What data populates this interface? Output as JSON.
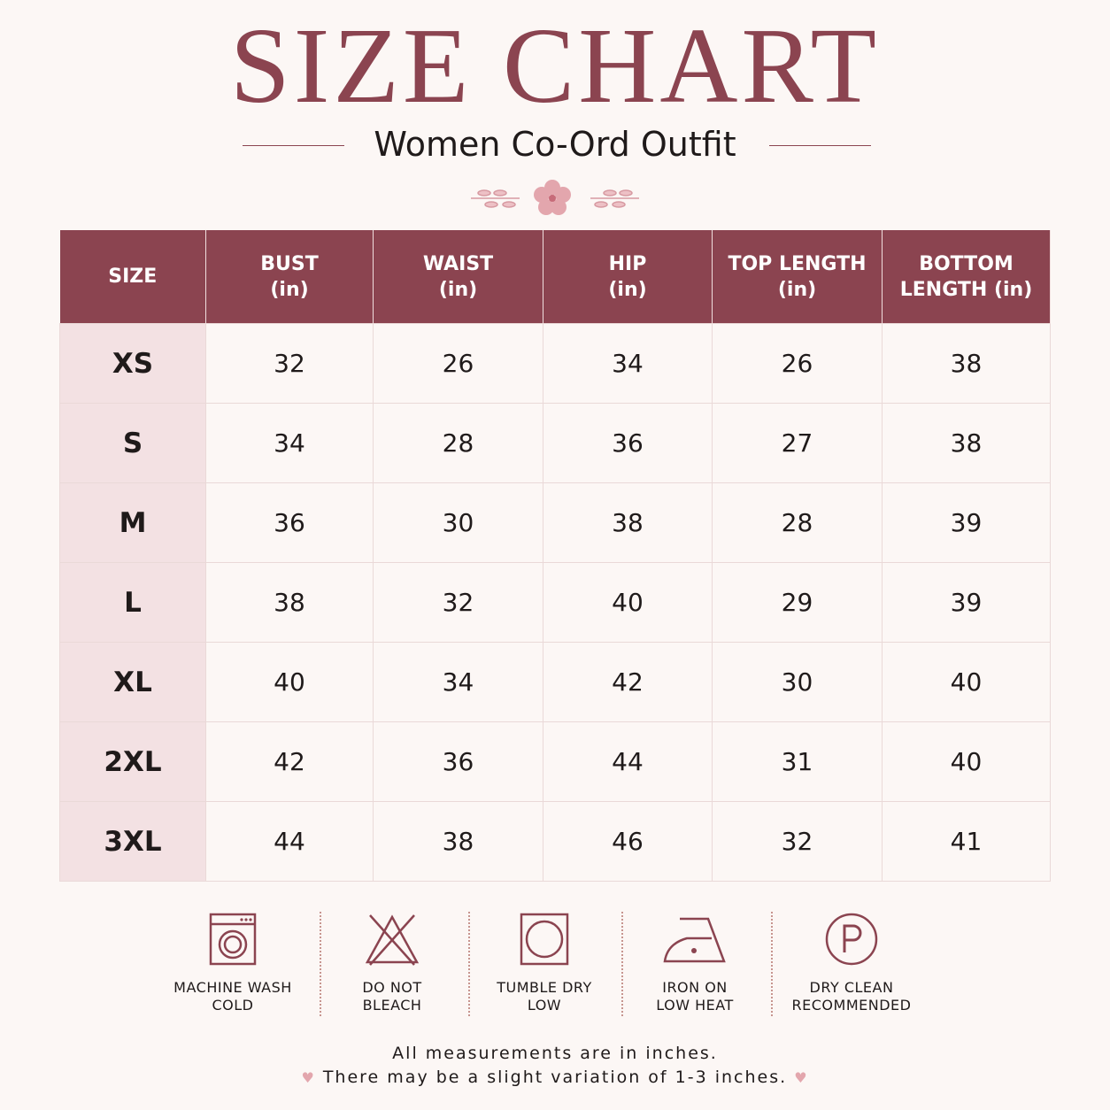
{
  "header": {
    "title": "SIZE CHART",
    "subtitle": "Women Co-Ord Outfit"
  },
  "table": {
    "columns": [
      "SIZE",
      "BUST\n(in)",
      "WAIST\n(in)",
      "HIP\n(in)",
      "TOP LENGTH\n(in)",
      "BOTTOM\nLENGTH (in)"
    ],
    "rows": [
      [
        "XS",
        32,
        26,
        34,
        26,
        38
      ],
      [
        "S",
        34,
        28,
        36,
        27,
        38
      ],
      [
        "M",
        36,
        30,
        38,
        28,
        39
      ],
      [
        "L",
        38,
        32,
        40,
        29,
        39
      ],
      [
        "XL",
        40,
        34,
        42,
        30,
        40
      ],
      [
        "2XL",
        42,
        36,
        44,
        31,
        40
      ],
      [
        "3XL",
        44,
        38,
        46,
        32,
        41
      ]
    ]
  },
  "care": [
    "MACHINE WASH\nCOLD",
    "DO NOT\nBLEACH",
    "TUMBLE DRY\nLOW",
    "IRON ON\nLOW HEAT",
    "DRY CLEAN\nRECOMMENDED"
  ],
  "footer": [
    "All measurements are in inches.",
    "There may be a slight variation of 1-3 inches."
  ]
}
